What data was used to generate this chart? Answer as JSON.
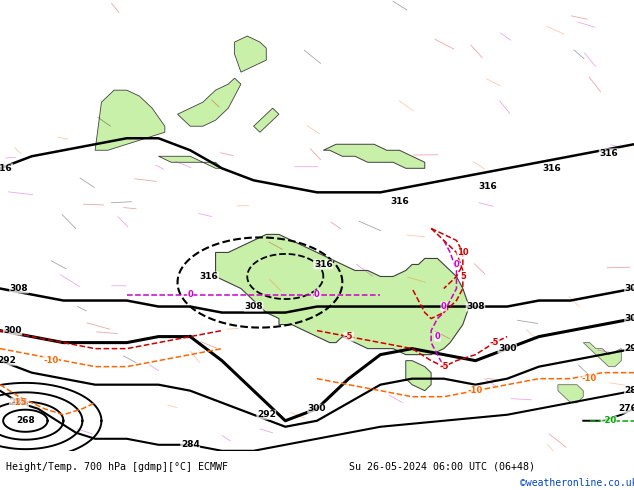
{
  "title_left": "Height/Temp. 700 hPa [gdmp][°C] ECMWF",
  "title_right": "Su 26-05-2024 06:00 UTC (06+48)",
  "watermark": "©weatheronline.co.uk",
  "bg_color": "#d0d8e8",
  "land_color": "#c8f0a8",
  "land_edge": "#404040",
  "contour_color": "#000000",
  "temp_pos_color": "#cc0000",
  "temp_neg_color": "#ff6600",
  "temp_zero_color": "#cc00cc",
  "temp_neg20_color": "#00aa00",
  "footer_left": "Height/Temp. 700 hPa [gdmp][°C] ECMWF",
  "footer_right": "Su 26-05-2024 06:00 UTC (06+48)",
  "watermark_text": "©weatheronline.co.uk",
  "lon_min": 80,
  "lon_max": 180,
  "lat_min": -55,
  "lat_max": 20
}
